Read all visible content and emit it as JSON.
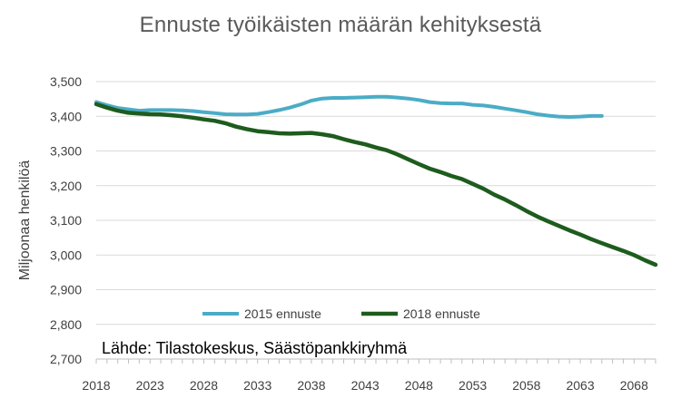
{
  "chart_data": {
    "type": "line",
    "title": "Ennuste työikäisten määrän kehityksestä",
    "ylabel": "Miljoonaa henkilöä",
    "xlabel": "",
    "xlim": [
      2018,
      2070
    ],
    "ylim": [
      2700,
      3500
    ],
    "yticks": [
      "2,700",
      "2,800",
      "2,900",
      "3,000",
      "3,100",
      "3,200",
      "3,300",
      "3,400",
      "3,500"
    ],
    "ytick_values": [
      2700,
      2800,
      2900,
      3000,
      3100,
      3200,
      3300,
      3400,
      3500
    ],
    "xticks": [
      "2018",
      "2023",
      "2028",
      "2033",
      "2038",
      "2043",
      "2048",
      "2053",
      "2058",
      "2063",
      "2068"
    ],
    "xtick_values": [
      2018,
      2023,
      2028,
      2033,
      2038,
      2043,
      2048,
      2053,
      2058,
      2063,
      2068
    ],
    "grid": true,
    "legend_position": "bottom-center",
    "annotation": "Lähde: Tilastokeskus, Säästöpankkiryhmä",
    "series": [
      {
        "name": "2015 ennuste",
        "color": "#4bacc6",
        "x": [
          2018,
          2019,
          2020,
          2021,
          2022,
          2023,
          2024,
          2025,
          2026,
          2027,
          2028,
          2029,
          2030,
          2031,
          2032,
          2033,
          2034,
          2035,
          2036,
          2037,
          2038,
          2039,
          2040,
          2041,
          2042,
          2043,
          2044,
          2045,
          2046,
          2047,
          2048,
          2049,
          2050,
          2051,
          2052,
          2053,
          2054,
          2055,
          2056,
          2057,
          2058,
          2059,
          2060,
          2061,
          2062,
          2063,
          2064,
          2065
        ],
        "y": [
          3441,
          3432,
          3424,
          3420,
          3416,
          3418,
          3418,
          3418,
          3417,
          3415,
          3412,
          3409,
          3406,
          3405,
          3405,
          3407,
          3412,
          3418,
          3425,
          3434,
          3445,
          3451,
          3453,
          3453,
          3454,
          3455,
          3456,
          3456,
          3454,
          3451,
          3447,
          3441,
          3438,
          3437,
          3437,
          3433,
          3431,
          3427,
          3422,
          3417,
          3412,
          3406,
          3402,
          3399,
          3398,
          3399,
          3401,
          3401
        ]
      },
      {
        "name": "2018 ennuste",
        "color": "#1e5c1e",
        "x": [
          2018,
          2019,
          2020,
          2021,
          2022,
          2023,
          2024,
          2025,
          2026,
          2027,
          2028,
          2029,
          2030,
          2031,
          2032,
          2033,
          2034,
          2035,
          2036,
          2037,
          2038,
          2039,
          2040,
          2041,
          2042,
          2043,
          2044,
          2045,
          2046,
          2047,
          2048,
          2049,
          2050,
          2051,
          2052,
          2053,
          2054,
          2055,
          2056,
          2057,
          2058,
          2059,
          2060,
          2061,
          2062,
          2063,
          2064,
          2065,
          2066,
          2067,
          2068,
          2069,
          2070
        ],
        "y": [
          3435,
          3425,
          3416,
          3410,
          3408,
          3406,
          3405,
          3403,
          3400,
          3396,
          3391,
          3387,
          3380,
          3370,
          3363,
          3357,
          3354,
          3351,
          3350,
          3351,
          3352,
          3348,
          3343,
          3334,
          3326,
          3319,
          3310,
          3302,
          3290,
          3276,
          3262,
          3249,
          3239,
          3228,
          3219,
          3205,
          3191,
          3174,
          3160,
          3144,
          3127,
          3111,
          3097,
          3084,
          3071,
          3059,
          3046,
          3034,
          3023,
          3012,
          3000,
          2985,
          2972
        ]
      }
    ]
  }
}
